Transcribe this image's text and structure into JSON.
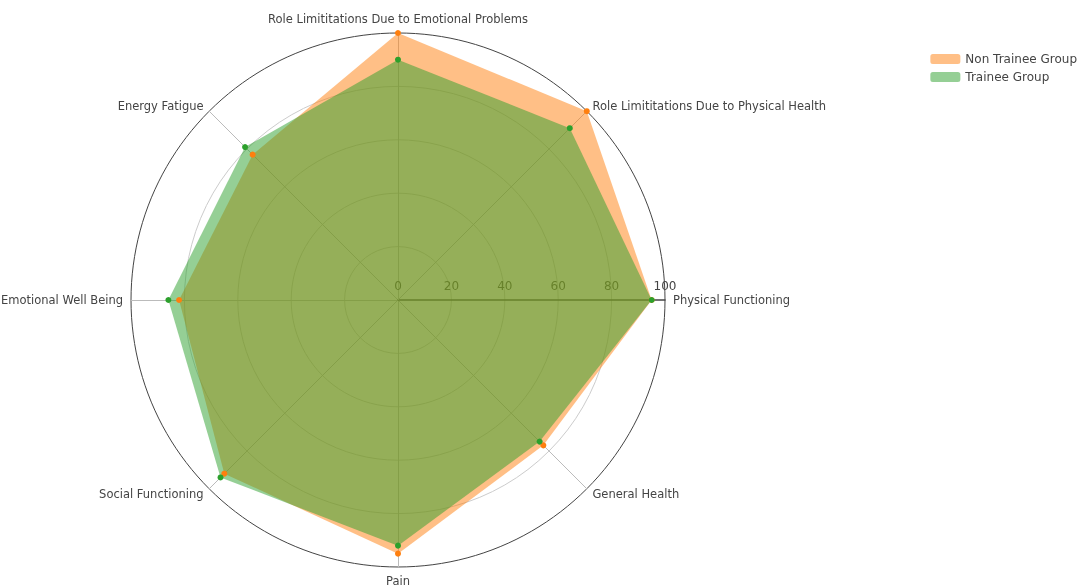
{
  "chart_data": {
    "type": "radar",
    "categories": [
      "Role Limititations Due to Emotional Problems",
      "Role Limititations Due to Physical Health",
      "Physical Functioning",
      "General Health",
      "Pain",
      "Social Functioning",
      "Emotional Well Being",
      "Energy Fatigue"
    ],
    "series": [
      {
        "name": "Non Trainee Group",
        "color": "#ff7f0e",
        "values": [
          100,
          100,
          95,
          77,
          95,
          92,
          82,
          77
        ]
      },
      {
        "name": "Trainee Group",
        "color": "#2ca02c",
        "values": [
          90,
          91,
          95,
          75,
          92,
          94,
          86,
          81
        ]
      }
    ],
    "ylim": [
      0,
      100
    ],
    "yticks": [
      0,
      20,
      40,
      60,
      80,
      100
    ],
    "grid": true,
    "legend": "top right",
    "marker": "circle"
  }
}
